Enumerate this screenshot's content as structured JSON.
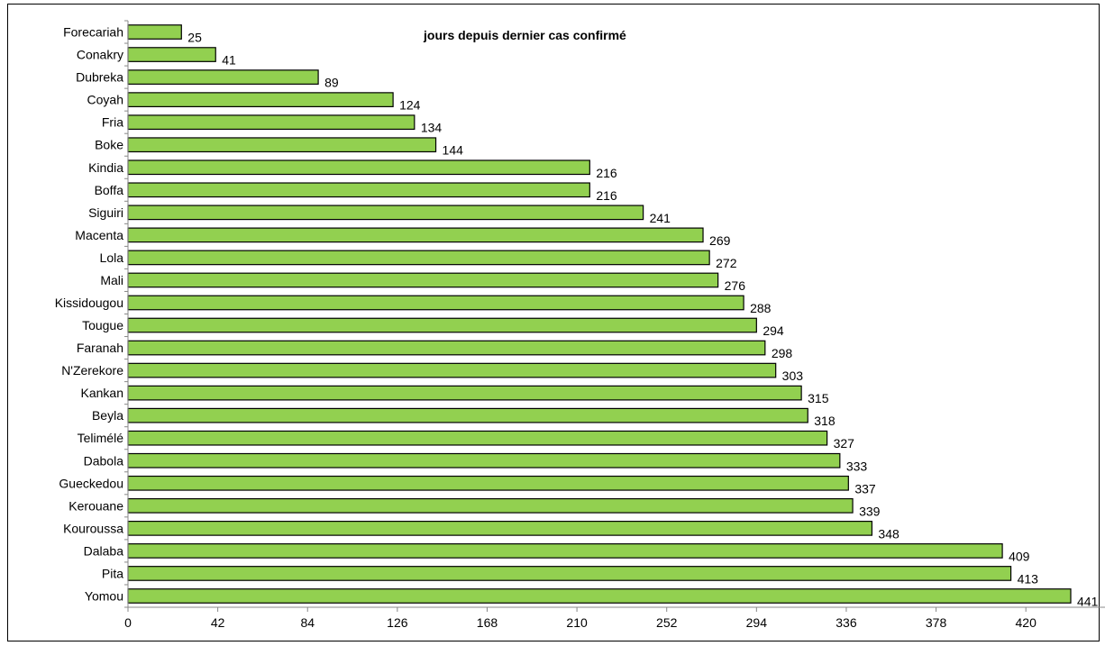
{
  "chart_data": {
    "type": "bar",
    "orientation": "horizontal",
    "title": "jours depuis dernier cas confirmé",
    "xlabel": "",
    "ylabel": "",
    "xlim": [
      0,
      441
    ],
    "x_ticks": [
      0,
      42,
      84,
      126,
      168,
      210,
      252,
      294,
      336,
      378,
      420
    ],
    "grid": false,
    "bar_color": "#92d050",
    "bar_stroke": "#000000",
    "categories": [
      "Forecariah",
      "Conakry",
      "Dubreka",
      "Coyah",
      "Fria",
      "Boke",
      "Kindia",
      "Boffa",
      "Siguiri",
      "Macenta",
      "Lola",
      "Mali",
      "Kissidougou",
      "Tougue",
      "Faranah",
      "N'Zerekore",
      "Kankan",
      "Beyla",
      "Telimélé",
      "Dabola",
      "Gueckedou",
      "Kerouane",
      "Kouroussa",
      "Dalaba",
      "Pita",
      "Yomou"
    ],
    "values": [
      25,
      41,
      89,
      124,
      134,
      144,
      216,
      216,
      241,
      269,
      272,
      276,
      288,
      294,
      298,
      303,
      315,
      318,
      327,
      333,
      337,
      339,
      348,
      409,
      413,
      441
    ]
  }
}
